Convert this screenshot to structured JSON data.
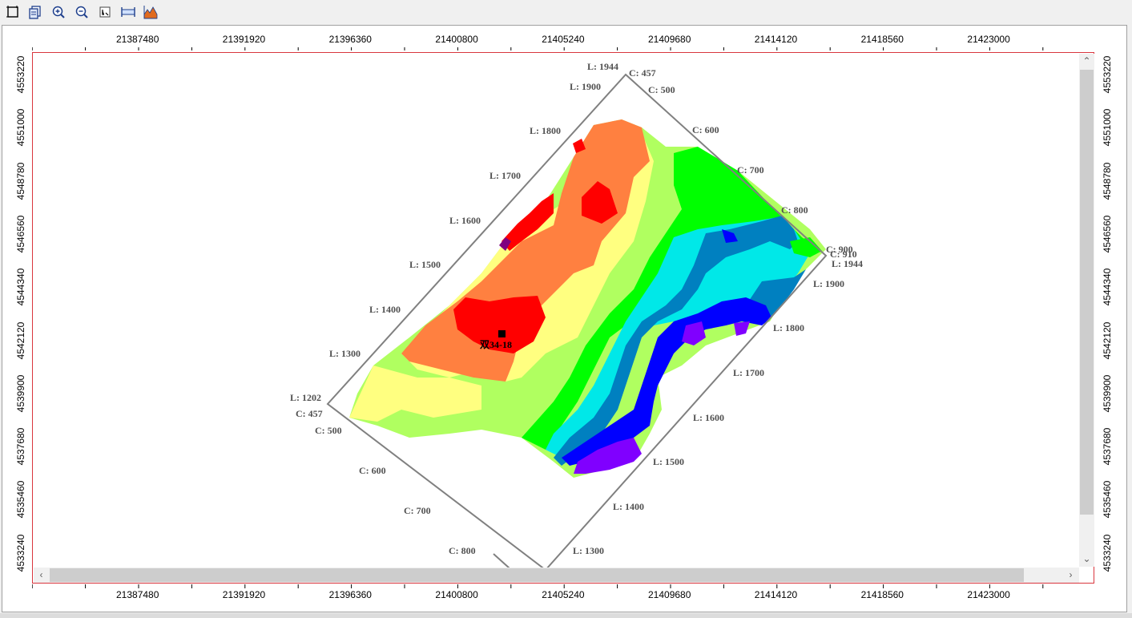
{
  "toolbar": {
    "buttons": [
      {
        "name": "select-tool-button",
        "icon": "rectangle-select-icon"
      },
      {
        "name": "copy-button",
        "icon": "copy-icon"
      },
      {
        "name": "zoom-in-button",
        "icon": "zoom-in-icon"
      },
      {
        "name": "zoom-out-button",
        "icon": "zoom-out-icon"
      },
      {
        "name": "fit-button",
        "icon": "fit-extent-icon"
      },
      {
        "name": "measure-button",
        "icon": "horizontal-measure-icon"
      },
      {
        "name": "histogram-button",
        "icon": "histogram-icon"
      }
    ]
  },
  "map": {
    "x_ticks": [
      "21387480",
      "21391920",
      "21396360",
      "21400800",
      "21405240",
      "21409680",
      "21414120",
      "21418560",
      "21423000"
    ],
    "y_ticks": [
      "4553220",
      "4551000",
      "4548780",
      "4546560",
      "4544340",
      "4542120",
      "4539900",
      "4537680",
      "4535460",
      "4533240"
    ],
    "well_label": "双34-18",
    "line_labels_upper": [
      "L: 1944",
      "L: 1900",
      "L: 1800",
      "L: 1700",
      "L: 1600",
      "L: 1500",
      "L: 1400",
      "L: 1300",
      "L: 1202"
    ],
    "line_labels_lower": [
      "L: 1944",
      "L: 1900",
      "L: 1800",
      "L: 1700",
      "L: 1600",
      "L: 1500",
      "L: 1400",
      "L: 1300"
    ],
    "cdp_labels_upper": [
      "C: 457",
      "C: 500",
      "C: 600",
      "C: 700",
      "C: 800",
      "C: 900",
      "C: 910"
    ],
    "cdp_labels_lower": [
      "C: 457",
      "C: 500",
      "C: 600",
      "C: 700",
      "C: 800"
    ],
    "colors": {
      "red": "#ff0000",
      "orange": "#ff8040",
      "yellow": "#ffff80",
      "lightgreen": "#b0ff60",
      "green": "#00ff00",
      "cyan": "#00e8e8",
      "steelblue": "#0080c0",
      "blue": "#0000ff",
      "violet": "#8000ff",
      "dark": "#800080"
    }
  }
}
